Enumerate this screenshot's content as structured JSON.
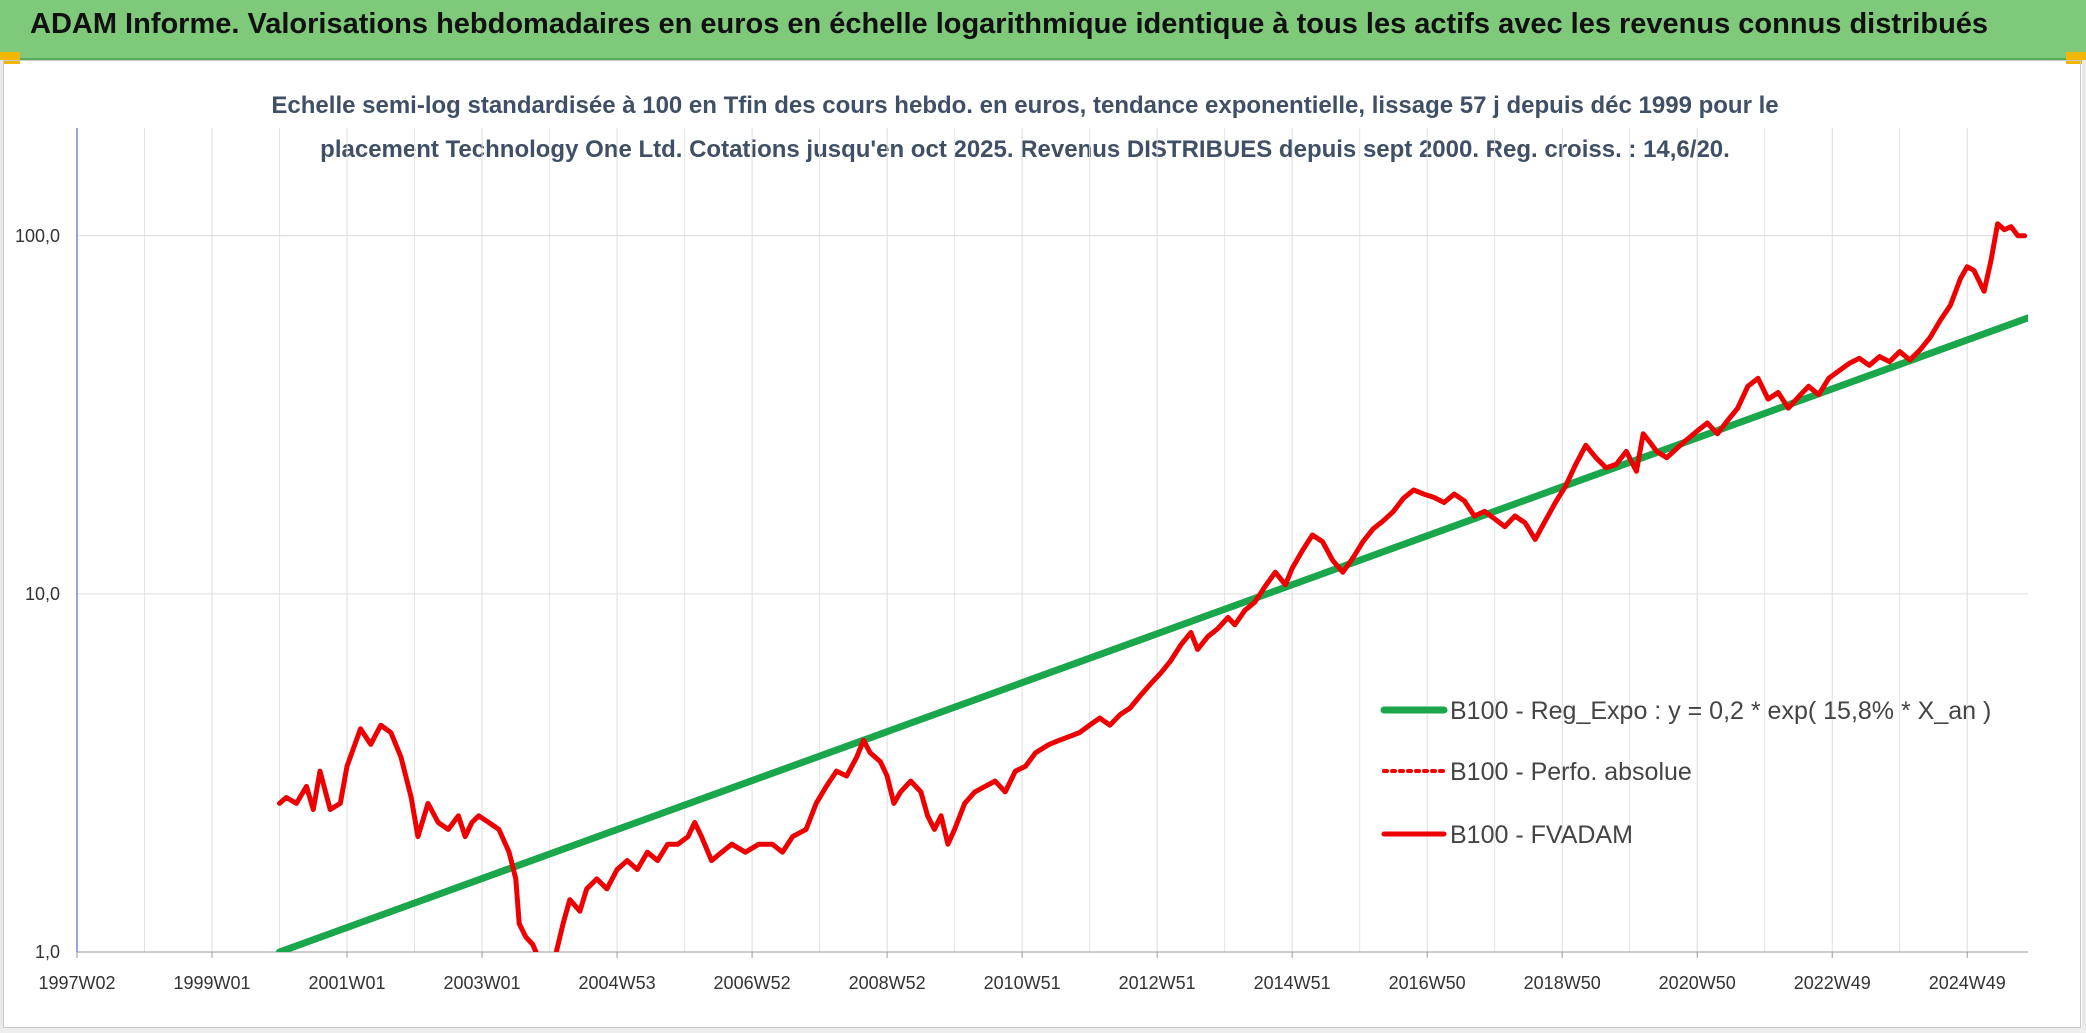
{
  "header": {
    "title": "ADAM Informe. Valorisations hebdomadaires en euros en échelle logarithmique identique à tous les actifs avec les revenus connus distribués"
  },
  "colors": {
    "banner": "#7ec97a",
    "trend": "#1aa64a",
    "fvadam": "#ee0000",
    "perfo": "#ee0000",
    "subtitle": "#3f5066"
  },
  "chart_data": {
    "type": "line",
    "title_lines": [
      "Echelle semi-log standardisée à 100 en Tfin des cours hebdo. en euros, tendance exponentielle, lissage 57 j depuis déc 1999 pour le",
      "placement Technology One Ltd. Cotations jusqu'en oct 2025. Revenus DISTRIBUES depuis sept 2000. Reg. croiss. : 14,6/20."
    ],
    "y_scale": "log",
    "ylim": [
      1,
      200
    ],
    "y_ticks": [
      {
        "value": 1,
        "label": "1,0"
      },
      {
        "value": 10,
        "label": "10,0"
      },
      {
        "value": 100,
        "label": "100,0"
      }
    ],
    "xlim": [
      1997.0,
      2025.9
    ],
    "x_ticks": [
      {
        "value": 1997.0,
        "label": "1997W02"
      },
      {
        "value": 1999.0,
        "label": "1999W01"
      },
      {
        "value": 2001.0,
        "label": "2001W01"
      },
      {
        "value": 2003.0,
        "label": "2003W01"
      },
      {
        "value": 2005.0,
        "label": "2004W53"
      },
      {
        "value": 2007.0,
        "label": "2006W52"
      },
      {
        "value": 2009.0,
        "label": "2008W52"
      },
      {
        "value": 2011.0,
        "label": "2010W51"
      },
      {
        "value": 2013.0,
        "label": "2012W51"
      },
      {
        "value": 2015.0,
        "label": "2014W51"
      },
      {
        "value": 2017.0,
        "label": "2016W50"
      },
      {
        "value": 2019.0,
        "label": "2018W50"
      },
      {
        "value": 2021.0,
        "label": "2020W50"
      },
      {
        "value": 2023.0,
        "label": "2022W49"
      },
      {
        "value": 2025.0,
        "label": "2024W49"
      }
    ],
    "grid": true,
    "legend_position": "right",
    "series": [
      {
        "name": "B100 - Reg_Expo : y = 0,2 * exp( 15,8% *  X_an )",
        "style": "solid",
        "color": "#1aa64a",
        "points": [
          [
            2000.0,
            1.0
          ],
          [
            2025.9,
            59.0
          ]
        ]
      },
      {
        "name": "B100 - Perfo. absolue",
        "style": "dotted",
        "color": "#ee0000",
        "points": []
      },
      {
        "name": "B100 - FVADAM",
        "style": "solid",
        "color": "#ee0000",
        "points": [
          [
            2000.0,
            2.6
          ],
          [
            2000.1,
            2.7
          ],
          [
            2000.25,
            2.6
          ],
          [
            2000.4,
            2.9
          ],
          [
            2000.5,
            2.5
          ],
          [
            2000.6,
            3.2
          ],
          [
            2000.75,
            2.5
          ],
          [
            2000.9,
            2.6
          ],
          [
            2001.0,
            3.3
          ],
          [
            2001.2,
            4.2
          ],
          [
            2001.35,
            3.8
          ],
          [
            2001.5,
            4.3
          ],
          [
            2001.65,
            4.1
          ],
          [
            2001.8,
            3.5
          ],
          [
            2001.95,
            2.7
          ],
          [
            2002.05,
            2.1
          ],
          [
            2002.2,
            2.6
          ],
          [
            2002.35,
            2.3
          ],
          [
            2002.5,
            2.2
          ],
          [
            2002.65,
            2.4
          ],
          [
            2002.75,
            2.1
          ],
          [
            2002.85,
            2.3
          ],
          [
            2002.95,
            2.4
          ],
          [
            2003.1,
            2.3
          ],
          [
            2003.25,
            2.2
          ],
          [
            2003.4,
            1.9
          ],
          [
            2003.5,
            1.6
          ],
          [
            2003.55,
            1.2
          ],
          [
            2003.65,
            1.1
          ],
          [
            2003.75,
            1.05
          ],
          [
            2003.85,
            0.95
          ],
          [
            2004.0,
            0.9
          ],
          [
            2004.1,
            1.0
          ],
          [
            2004.2,
            1.2
          ],
          [
            2004.3,
            1.4
          ],
          [
            2004.45,
            1.3
          ],
          [
            2004.55,
            1.5
          ],
          [
            2004.7,
            1.6
          ],
          [
            2004.85,
            1.5
          ],
          [
            2005.0,
            1.7
          ],
          [
            2005.15,
            1.8
          ],
          [
            2005.3,
            1.7
          ],
          [
            2005.45,
            1.9
          ],
          [
            2005.6,
            1.8
          ],
          [
            2005.75,
            2.0
          ],
          [
            2005.9,
            2.0
          ],
          [
            2006.05,
            2.1
          ],
          [
            2006.15,
            2.3
          ],
          [
            2006.25,
            2.1
          ],
          [
            2006.4,
            1.8
          ],
          [
            2006.55,
            1.9
          ],
          [
            2006.7,
            2.0
          ],
          [
            2006.9,
            1.9
          ],
          [
            2007.1,
            2.0
          ],
          [
            2007.3,
            2.0
          ],
          [
            2007.45,
            1.9
          ],
          [
            2007.6,
            2.1
          ],
          [
            2007.8,
            2.2
          ],
          [
            2007.95,
            2.6
          ],
          [
            2008.1,
            2.9
          ],
          [
            2008.25,
            3.2
          ],
          [
            2008.4,
            3.1
          ],
          [
            2008.55,
            3.5
          ],
          [
            2008.65,
            3.9
          ],
          [
            2008.75,
            3.6
          ],
          [
            2008.9,
            3.4
          ],
          [
            2009.0,
            3.1
          ],
          [
            2009.1,
            2.6
          ],
          [
            2009.2,
            2.8
          ],
          [
            2009.35,
            3.0
          ],
          [
            2009.5,
            2.8
          ],
          [
            2009.6,
            2.4
          ],
          [
            2009.7,
            2.2
          ],
          [
            2009.8,
            2.4
          ],
          [
            2009.9,
            2.0
          ],
          [
            2010.0,
            2.2
          ],
          [
            2010.15,
            2.6
          ],
          [
            2010.3,
            2.8
          ],
          [
            2010.45,
            2.9
          ],
          [
            2010.6,
            3.0
          ],
          [
            2010.75,
            2.8
          ],
          [
            2010.9,
            3.2
          ],
          [
            2011.05,
            3.3
          ],
          [
            2011.2,
            3.6
          ],
          [
            2011.4,
            3.8
          ],
          [
            2011.55,
            3.9
          ],
          [
            2011.7,
            4.0
          ],
          [
            2011.85,
            4.1
          ],
          [
            2012.0,
            4.3
          ],
          [
            2012.15,
            4.5
          ],
          [
            2012.3,
            4.3
          ],
          [
            2012.45,
            4.6
          ],
          [
            2012.6,
            4.8
          ],
          [
            2012.75,
            5.2
          ],
          [
            2012.9,
            5.6
          ],
          [
            2013.05,
            6.0
          ],
          [
            2013.2,
            6.5
          ],
          [
            2013.35,
            7.2
          ],
          [
            2013.5,
            7.8
          ],
          [
            2013.6,
            7.0
          ],
          [
            2013.75,
            7.6
          ],
          [
            2013.9,
            8.0
          ],
          [
            2014.05,
            8.6
          ],
          [
            2014.15,
            8.2
          ],
          [
            2014.3,
            9.0
          ],
          [
            2014.45,
            9.5
          ],
          [
            2014.6,
            10.5
          ],
          [
            2014.75,
            11.5
          ],
          [
            2014.9,
            10.6
          ],
          [
            2015.0,
            11.8
          ],
          [
            2015.15,
            13.2
          ],
          [
            2015.3,
            14.6
          ],
          [
            2015.45,
            14.0
          ],
          [
            2015.6,
            12.4
          ],
          [
            2015.75,
            11.5
          ],
          [
            2015.9,
            12.6
          ],
          [
            2016.05,
            14.0
          ],
          [
            2016.2,
            15.2
          ],
          [
            2016.35,
            16.0
          ],
          [
            2016.5,
            17.0
          ],
          [
            2016.65,
            18.5
          ],
          [
            2016.8,
            19.5
          ],
          [
            2016.95,
            19.0
          ],
          [
            2017.1,
            18.6
          ],
          [
            2017.25,
            18.0
          ],
          [
            2017.4,
            19.0
          ],
          [
            2017.55,
            18.2
          ],
          [
            2017.7,
            16.5
          ],
          [
            2017.85,
            17.0
          ],
          [
            2018.0,
            16.2
          ],
          [
            2018.15,
            15.4
          ],
          [
            2018.3,
            16.5
          ],
          [
            2018.45,
            15.8
          ],
          [
            2018.6,
            14.2
          ],
          [
            2018.75,
            16.0
          ],
          [
            2018.9,
            18.0
          ],
          [
            2019.05,
            20.0
          ],
          [
            2019.2,
            23.0
          ],
          [
            2019.35,
            26.0
          ],
          [
            2019.5,
            24.0
          ],
          [
            2019.65,
            22.5
          ],
          [
            2019.8,
            23.0
          ],
          [
            2019.95,
            25.0
          ],
          [
            2020.1,
            22.0
          ],
          [
            2020.2,
            28.0
          ],
          [
            2020.3,
            26.5
          ],
          [
            2020.4,
            25.0
          ],
          [
            2020.55,
            24.0
          ],
          [
            2020.7,
            25.5
          ],
          [
            2020.85,
            27.0
          ],
          [
            2021.0,
            28.5
          ],
          [
            2021.15,
            30.0
          ],
          [
            2021.3,
            28.0
          ],
          [
            2021.45,
            30.5
          ],
          [
            2021.6,
            33.0
          ],
          [
            2021.75,
            38.0
          ],
          [
            2021.9,
            40.0
          ],
          [
            2022.05,
            35.0
          ],
          [
            2022.2,
            36.5
          ],
          [
            2022.35,
            33.0
          ],
          [
            2022.5,
            35.5
          ],
          [
            2022.65,
            38.0
          ],
          [
            2022.8,
            36.0
          ],
          [
            2022.95,
            40.0
          ],
          [
            2023.1,
            42.0
          ],
          [
            2023.25,
            44.0
          ],
          [
            2023.4,
            45.5
          ],
          [
            2023.55,
            43.5
          ],
          [
            2023.7,
            46.0
          ],
          [
            2023.85,
            44.5
          ],
          [
            2024.0,
            47.5
          ],
          [
            2024.15,
            45.0
          ],
          [
            2024.3,
            48.0
          ],
          [
            2024.45,
            52.0
          ],
          [
            2024.6,
            58.0
          ],
          [
            2024.75,
            64.0
          ],
          [
            2024.9,
            76.0
          ],
          [
            2025.0,
            82.0
          ],
          [
            2025.1,
            80.0
          ],
          [
            2025.25,
            70.0
          ],
          [
            2025.35,
            85.0
          ],
          [
            2025.45,
            108.0
          ],
          [
            2025.55,
            104.0
          ],
          [
            2025.65,
            106.0
          ],
          [
            2025.75,
            100.0
          ],
          [
            2025.85,
            100.0
          ]
        ]
      }
    ]
  }
}
